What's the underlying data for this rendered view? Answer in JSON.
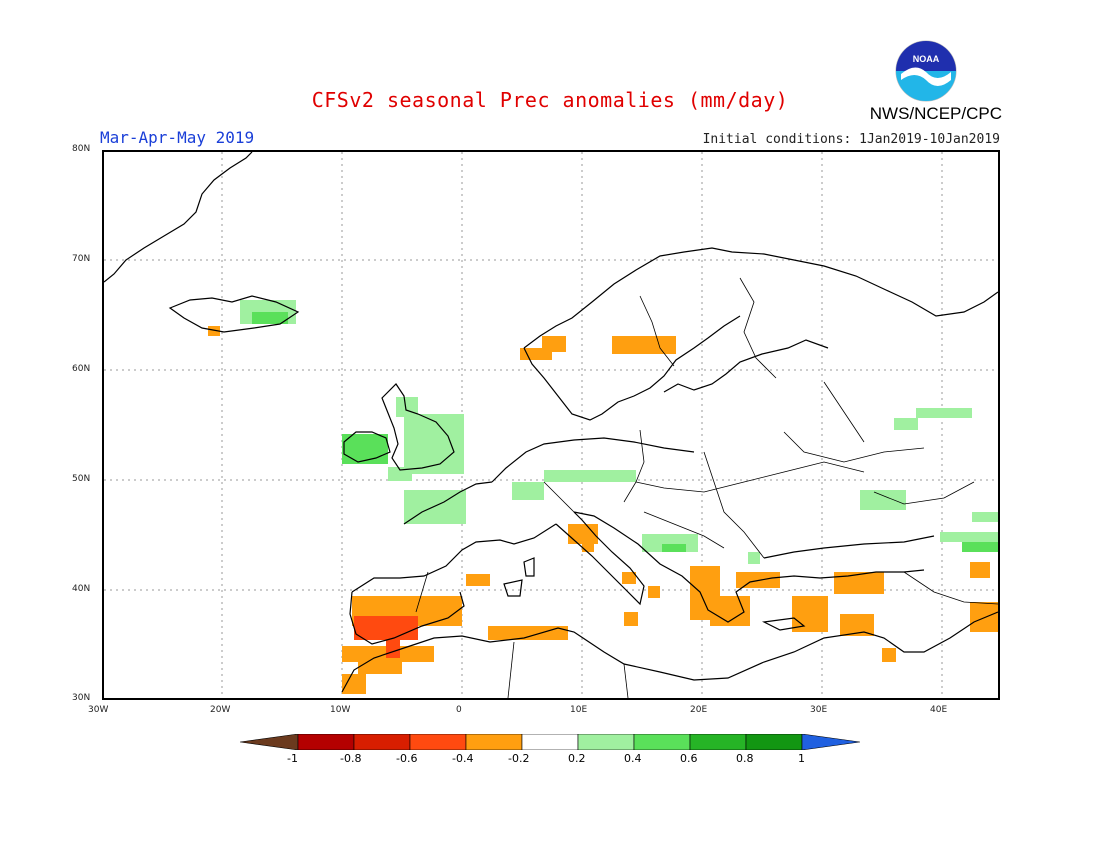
{
  "header": {
    "title": "CFSv2 seasonal Prec anomalies (mm/day)",
    "season": "Mar-Apr-May 2019",
    "initial_conditions": "Initial conditions: 1Jan2019-10Jan2019",
    "agency": "NWS/NCEP/CPC",
    "logo_text": "NOAA"
  },
  "axes": {
    "lat_labels": [
      "80N",
      "70N",
      "60N",
      "50N",
      "40N",
      "30N"
    ],
    "lon_labels": [
      "30W",
      "20W",
      "10W",
      "0",
      "10E",
      "20E",
      "30E",
      "40E"
    ]
  },
  "colorbar": {
    "labels": [
      "-1",
      "-0.8",
      "-0.6",
      "-0.4",
      "-0.2",
      "0.2",
      "0.4",
      "0.6",
      "0.8",
      "1"
    ],
    "colors": [
      "#6b3a1e",
      "#b40000",
      "#d81e00",
      "#ff4a10",
      "#ff9f10",
      "#ffffff",
      "#a0f0a0",
      "#5ae05a",
      "#26b426",
      "#129612",
      "#2060e0"
    ]
  },
  "colors": {
    "deficit_orange": "#ff9f10",
    "deficit_red": "#ff4a10",
    "surplus_light_green": "#a0f0a0",
    "surplus_green": "#5ae05a"
  }
}
